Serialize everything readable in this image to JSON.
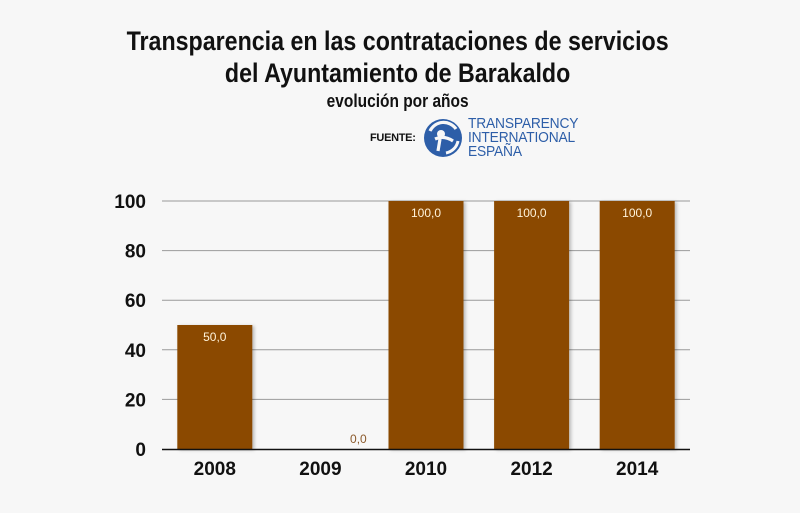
{
  "header": {
    "title_line1": "Transparencia en las contrataciones de servicios",
    "title_line2": "del Ayuntamiento de Barakaldo",
    "subtitle": "evolución por años"
  },
  "source": {
    "label": "FUENTE:",
    "logo_icon": "transparency-international-logo-icon",
    "org_line1": "TRANSPARENCY",
    "org_line2": "INTERNATIONAL",
    "org_line3": "ESPAÑA",
    "brand_color": "#2d5ea8"
  },
  "colors": {
    "bar": "#8b4a00",
    "background": "#f7f7f7",
    "grid": "#9a9a9a",
    "axis": "#111111",
    "label_inside": "#fff3da",
    "label_outside": "#8b5a2b"
  },
  "chart_data": {
    "type": "bar",
    "title": "Transparencia en las contrataciones de servicios del Ayuntamiento de Barakaldo",
    "subtitle": "evolución por años",
    "categories": [
      "2008",
      "2009",
      "2010",
      "2012",
      "2014"
    ],
    "values": [
      50.0,
      0.0,
      100.0,
      100.0,
      100.0
    ],
    "value_labels": [
      "50,0",
      "0,0",
      "100,0",
      "100,0",
      "100,0"
    ],
    "xlabel": "",
    "ylabel": "",
    "ylim": [
      0,
      100
    ],
    "yticks": [
      0,
      20,
      40,
      60,
      80,
      100
    ],
    "ytick_labels": [
      "0",
      "20",
      "40",
      "60",
      "80",
      "100"
    ],
    "grid": true,
    "legend": "none"
  }
}
